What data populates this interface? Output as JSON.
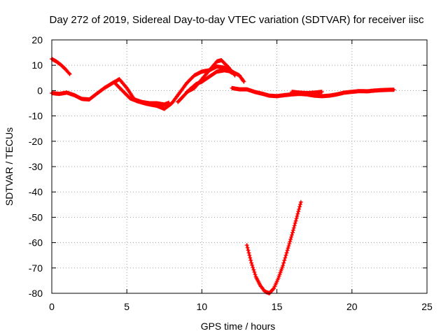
{
  "chart_data": {
    "type": "scatter",
    "title": "Day 272 of 2019, Sidereal Day-to-day VTEC variation (SDTVAR) for receiver iisc",
    "xlabel": "GPS time / hours",
    "ylabel": "SDTVAR / TECUs",
    "xlim": [
      0,
      25
    ],
    "ylim": [
      -80,
      20
    ],
    "xticks": [
      0,
      5,
      10,
      15,
      20,
      25
    ],
    "yticks": [
      20,
      10,
      0,
      -10,
      -20,
      -30,
      -40,
      -50,
      -60,
      -70,
      -80
    ],
    "grid": true,
    "marker": "+",
    "color": "#ff0000",
    "series": [
      {
        "name": "arc-1",
        "points": [
          [
            0.0,
            12.5
          ],
          [
            0.3,
            11.5
          ],
          [
            0.6,
            10.2
          ],
          [
            0.9,
            8.5
          ],
          [
            1.2,
            6.5
          ]
        ]
      },
      {
        "name": "arc-2",
        "points": [
          [
            0.0,
            -1.0
          ],
          [
            0.5,
            -1.3
          ],
          [
            1.0,
            -0.8
          ],
          [
            1.5,
            -1.8
          ],
          [
            2.0,
            -3.3
          ],
          [
            2.5,
            -3.5
          ],
          [
            3.0,
            -1.2
          ],
          [
            3.5,
            1.0
          ],
          [
            4.0,
            2.8
          ],
          [
            4.5,
            4.5
          ],
          [
            5.0,
            1.0
          ],
          [
            5.5,
            -3.5
          ],
          [
            6.0,
            -4.5
          ],
          [
            6.5,
            -5.0
          ],
          [
            7.0,
            -5.0
          ],
          [
            7.5,
            -5.5
          ],
          [
            7.8,
            -4.8
          ]
        ]
      },
      {
        "name": "arc-3",
        "points": [
          [
            4.2,
            3.0
          ],
          [
            4.7,
            0.0
          ],
          [
            5.2,
            -3.0
          ],
          [
            5.7,
            -4.2
          ],
          [
            6.3,
            -5.2
          ],
          [
            7.0,
            -6.0
          ],
          [
            7.5,
            -7.2
          ],
          [
            8.0,
            -5.0
          ],
          [
            8.5,
            -1.0
          ],
          [
            9.0,
            3.0
          ],
          [
            9.5,
            6.0
          ],
          [
            10.0,
            7.5
          ],
          [
            10.5,
            8.0
          ],
          [
            11.0,
            11.5
          ],
          [
            11.3,
            12.0
          ],
          [
            11.8,
            9.0
          ],
          [
            12.2,
            6.0
          ]
        ]
      },
      {
        "name": "arc-4",
        "points": [
          [
            8.4,
            -4.5
          ],
          [
            8.8,
            -2.0
          ],
          [
            9.2,
            0.5
          ],
          [
            9.6,
            2.5
          ],
          [
            10.0,
            3.5
          ],
          [
            10.5,
            5.5
          ],
          [
            11.0,
            7.5
          ],
          [
            11.5,
            8.0
          ],
          [
            12.0,
            7.5
          ],
          [
            12.5,
            6.0
          ],
          [
            12.8,
            3.5
          ]
        ]
      },
      {
        "name": "arc-5",
        "points": [
          [
            9.0,
            -0.5
          ],
          [
            9.5,
            1.0
          ],
          [
            10.0,
            4.5
          ],
          [
            10.5,
            8.0
          ],
          [
            11.0,
            9.5
          ],
          [
            11.5,
            9.0
          ],
          [
            12.0,
            7.0
          ]
        ]
      },
      {
        "name": "arc-6",
        "points": [
          [
            12.0,
            1.0
          ],
          [
            12.5,
            0.5
          ],
          [
            13.0,
            0.5
          ],
          [
            13.5,
            -0.5
          ],
          [
            14.0,
            -1.2
          ],
          [
            14.5,
            -2.0
          ],
          [
            15.0,
            -2.2
          ],
          [
            15.5,
            -1.8
          ],
          [
            16.0,
            -1.5
          ],
          [
            16.5,
            -1.3
          ],
          [
            17.0,
            -1.5
          ],
          [
            17.5,
            -2.0
          ],
          [
            18.0,
            -2.2
          ],
          [
            18.5,
            -2.0
          ],
          [
            19.0,
            -1.5
          ],
          [
            19.5,
            -0.8
          ],
          [
            20.0,
            -0.5
          ],
          [
            20.5,
            -0.2
          ],
          [
            21.0,
            -0.3
          ],
          [
            21.5,
            0.0
          ],
          [
            22.0,
            0.2
          ],
          [
            22.5,
            0.3
          ],
          [
            22.8,
            0.3
          ]
        ]
      },
      {
        "name": "arc-7",
        "points": [
          [
            16.0,
            -0.5
          ],
          [
            16.5,
            -0.8
          ],
          [
            17.0,
            -1.0
          ],
          [
            17.5,
            -0.8
          ],
          [
            18.0,
            -0.5
          ]
        ]
      },
      {
        "name": "arc-8",
        "points": [
          [
            13.0,
            -61.0
          ],
          [
            13.3,
            -68.0
          ],
          [
            13.6,
            -73.5
          ],
          [
            13.9,
            -77.0
          ],
          [
            14.2,
            -79.3
          ],
          [
            14.5,
            -80.0
          ],
          [
            14.8,
            -78.0
          ],
          [
            15.1,
            -74.0
          ],
          [
            15.4,
            -69.0
          ],
          [
            15.7,
            -63.0
          ],
          [
            16.0,
            -57.0
          ],
          [
            16.3,
            -50.5
          ],
          [
            16.6,
            -44.0
          ]
        ]
      }
    ]
  }
}
